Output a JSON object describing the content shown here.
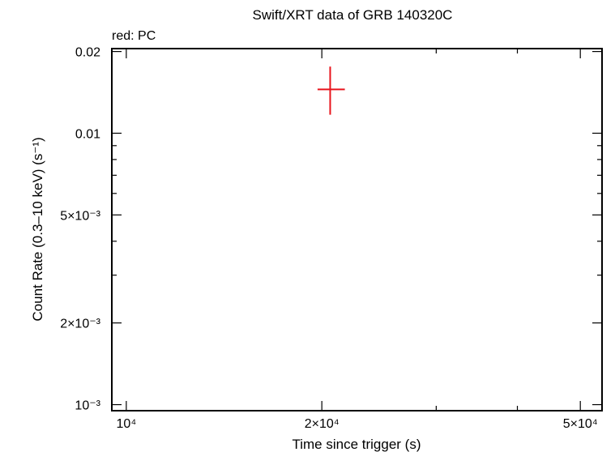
{
  "chart_data": {
    "type": "scatter",
    "title": "Swift/XRT data of GRB 140320C",
    "legend_text": "red: PC",
    "xlabel": "Time since trigger (s)",
    "ylabel": "Count Rate (0.3–10 keV) (s⁻¹)",
    "x_scale": "log",
    "y_scale": "log",
    "xlim": [
      9500,
      54000
    ],
    "ylim": [
      0.00095,
      0.0205
    ],
    "x_ticks": [
      {
        "value": 10000,
        "label": "10⁴"
      },
      {
        "value": 20000,
        "label": "2×10⁴"
      },
      {
        "value": 50000,
        "label": "5×10⁴"
      }
    ],
    "y_ticks": [
      {
        "value": 0.02,
        "label": "0.02"
      },
      {
        "value": 0.01,
        "label": "0.01"
      },
      {
        "value": 0.005,
        "label": "5×10⁻³"
      },
      {
        "value": 0.002,
        "label": "2×10⁻³"
      },
      {
        "value": 0.001,
        "label": "10⁻³"
      }
    ],
    "grid": false,
    "series": [
      {
        "color": "#e8141c",
        "points": [
          {
            "x": 20600,
            "x_err": [
              19700,
              21700
            ],
            "y": 0.0145,
            "y_err": [
              0.0117,
              0.0176
            ]
          }
        ]
      }
    ]
  }
}
